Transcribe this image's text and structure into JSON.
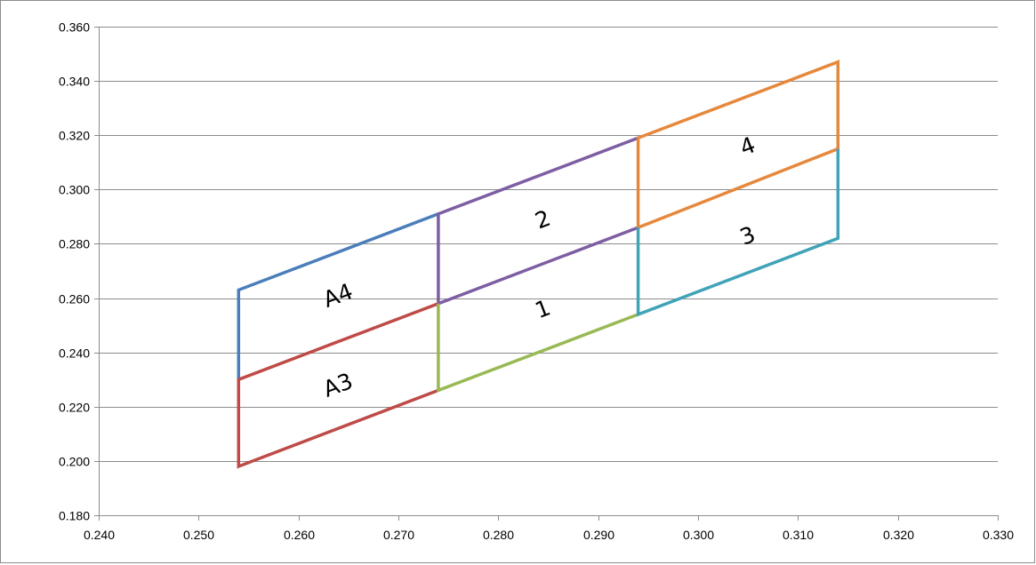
{
  "chart_data": {
    "type": "line",
    "title": "",
    "xlabel": "",
    "ylabel": "",
    "xlim": [
      0.24,
      0.33
    ],
    "ylim": [
      0.18,
      0.36
    ],
    "x_ticks": [
      "0.240",
      "0.250",
      "0.260",
      "0.270",
      "0.280",
      "0.290",
      "0.300",
      "0.310",
      "0.320",
      "0.330"
    ],
    "y_ticks": [
      "0.180",
      "0.200",
      "0.220",
      "0.240",
      "0.260",
      "0.280",
      "0.300",
      "0.320",
      "0.340",
      "0.360"
    ],
    "grid": "horizontal",
    "legend": "none",
    "series": [
      {
        "color": "#4A7EBB",
        "points": [
          [
            0.254,
            0.23
          ],
          [
            0.254,
            0.263
          ],
          [
            0.274,
            0.291
          ]
        ]
      },
      {
        "color": "#BE4B48",
        "points": [
          [
            0.274,
            0.258
          ],
          [
            0.254,
            0.23
          ],
          [
            0.254,
            0.198
          ],
          [
            0.274,
            0.226
          ]
        ]
      },
      {
        "color": "#7E5EA2",
        "points": [
          [
            0.274,
            0.258
          ],
          [
            0.274,
            0.291
          ],
          [
            0.294,
            0.319
          ]
        ]
      },
      {
        "color": "#7E5EA2",
        "points": [
          [
            0.274,
            0.258
          ],
          [
            0.294,
            0.286
          ]
        ]
      },
      {
        "color": "#98B954",
        "points": [
          [
            0.274,
            0.258
          ],
          [
            0.274,
            0.226
          ],
          [
            0.294,
            0.254
          ]
        ]
      },
      {
        "color": "#E6883C",
        "points": [
          [
            0.294,
            0.286
          ],
          [
            0.294,
            0.319
          ],
          [
            0.314,
            0.347
          ],
          [
            0.314,
            0.315
          ],
          [
            0.294,
            0.286
          ]
        ]
      },
      {
        "color": "#40A3B8",
        "points": [
          [
            0.294,
            0.286
          ],
          [
            0.294,
            0.254
          ],
          [
            0.314,
            0.282
          ],
          [
            0.314,
            0.315
          ]
        ]
      }
    ],
    "annotations": [
      {
        "text": "A4",
        "x": 0.264,
        "y": 0.2605
      },
      {
        "text": "A3",
        "x": 0.264,
        "y": 0.2275
      },
      {
        "text": "2",
        "x": 0.2845,
        "y": 0.2885
      },
      {
        "text": "1",
        "x": 0.2845,
        "y": 0.2555
      },
      {
        "text": "4",
        "x": 0.305,
        "y": 0.3155
      },
      {
        "text": "3",
        "x": 0.305,
        "y": 0.2825
      }
    ]
  }
}
